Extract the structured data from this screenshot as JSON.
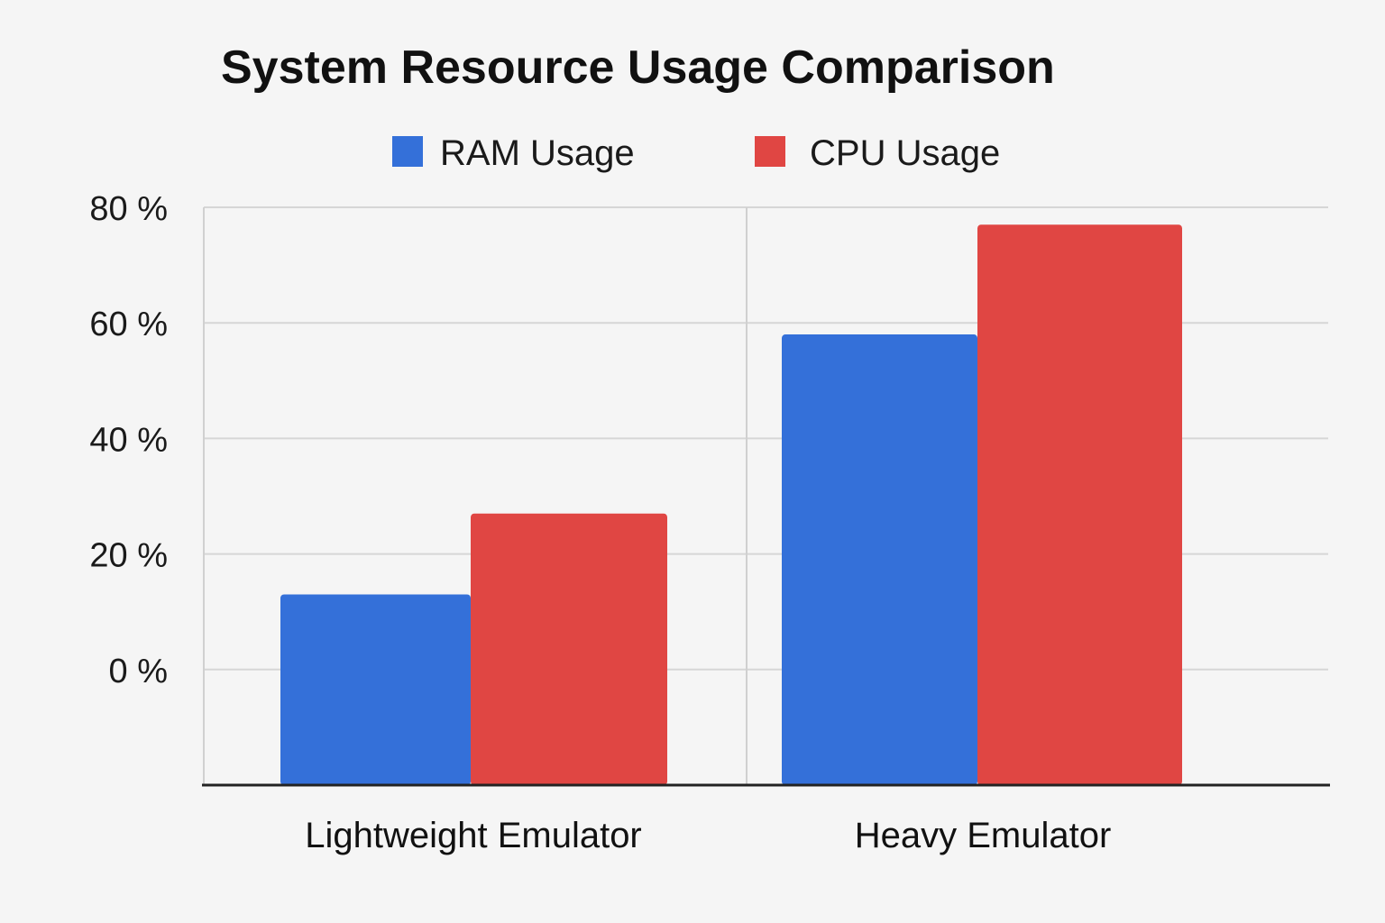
{
  "chart_data": {
    "type": "bar",
    "title": "System Resource Usage Comparison",
    "categories": [
      "Lightweight Emulator",
      "Heavy Emulator"
    ],
    "series": [
      {
        "name": "RAM Usage",
        "color": "#3470d9",
        "values": [
          13,
          58
        ]
      },
      {
        "name": "CPU Usage",
        "color": "#e04643",
        "values": [
          27,
          77
        ]
      }
    ],
    "yticks": [
      "0 %",
      "20 %",
      "40 %",
      "60 %",
      "80 %"
    ],
    "ytick_values": [
      0,
      20,
      40,
      60,
      80
    ],
    "ylim": [
      -20,
      80
    ],
    "xlabel": "",
    "ylabel": "",
    "grid": true,
    "legend_position": "top"
  }
}
